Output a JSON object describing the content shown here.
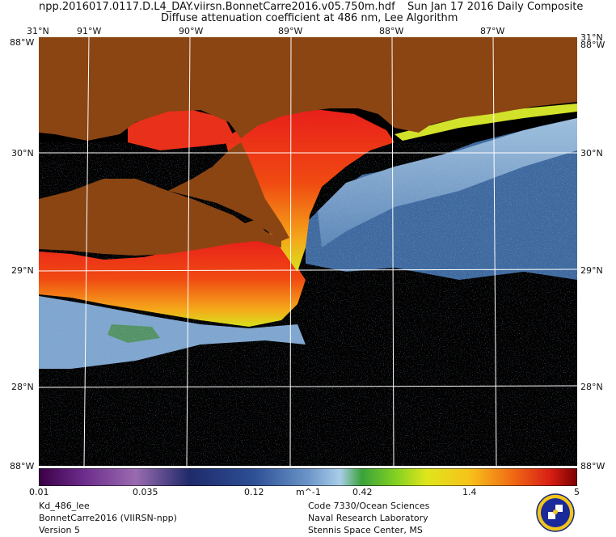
{
  "header": {
    "filename": "npp.2016017.0117.D.L4_DAY.viirsn.BonnetCarre2016.v05.750m.hdf",
    "date": "Sun Jan 17 2016 Daily Composite",
    "product": "Diffuse attenuation coefficient at 486 nm, Lee Algorithm"
  },
  "axes": {
    "top_lon": [
      "91°W",
      "90°W",
      "89°W",
      "88°W",
      "87°W"
    ],
    "top_corner_left": "31°N",
    "top_corner_right": "31°N",
    "left_lat": [
      "30°N",
      "29°N",
      "28°N"
    ],
    "right_lat": [
      "30°N",
      "29°N",
      "28°N"
    ],
    "corner_left_top": "88°W",
    "corner_right_top": "88°W",
    "bottom_left": "88°W",
    "bottom_right": "88°W"
  },
  "colorbar": {
    "ticks": [
      "0.01",
      "0.035",
      "0.12",
      "0.42",
      "1.4",
      "5"
    ],
    "unit": "m^-1"
  },
  "footer": {
    "left": [
      "Kd_486_lee",
      "BonnetCarre2016 (VIIRSN-npp)",
      "Version 5"
    ],
    "right": [
      "Code 7330/Ocean Sciences",
      "Naval Research Laboratory",
      "Stennis Space Center, MS"
    ]
  },
  "colors": {
    "land": "#8b4513",
    "no_data": "#000000",
    "grid": "#ffffff"
  },
  "icons": {
    "seal": "nrl-seal-icon"
  }
}
